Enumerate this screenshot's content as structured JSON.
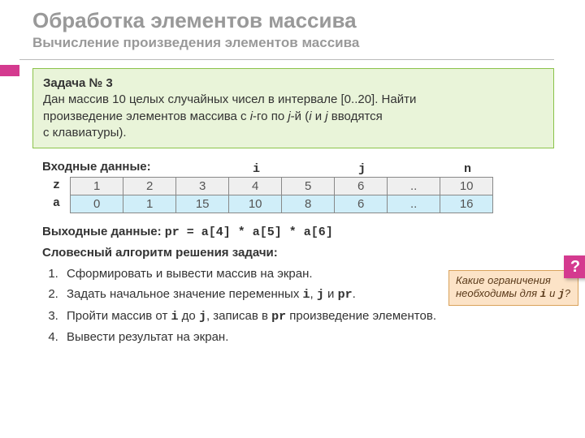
{
  "header": {
    "title": "Обработка элементов массива",
    "subtitle": "Вычисление произведения элементов массива"
  },
  "task": {
    "label": "Задача № 3",
    "text_l1": "Дан массив 10 целых случайных чисел в интервале [0..20]. Найти",
    "text_l2_a": "произведение элементов массива с ",
    "text_l2_b": "-го по ",
    "text_l2_c": "-й (",
    "text_l2_d": " и ",
    "text_l2_e": " вводятся",
    "text_l3": "с клавиатуры)."
  },
  "input_label": "Входные данные:",
  "col_labels": {
    "i": "i",
    "j": "j",
    "n": "n"
  },
  "row_labels": {
    "z": "z",
    "a": "a"
  },
  "table": {
    "z": [
      "1",
      "2",
      "3",
      "4",
      "5",
      "6",
      "..",
      "10"
    ],
    "a": [
      "0",
      "1",
      "15",
      "10",
      "8",
      "6",
      "..",
      "16"
    ]
  },
  "output": {
    "label": "Выходные данные: ",
    "expr": "pr = a[4] * a[5] * a[6]"
  },
  "algo_label": "Словесный алгоритм решения задачи:",
  "steps": {
    "s1": "Сформировать и вывести массив на экран.",
    "s2_a": "Задать начальное значение переменных ",
    "s2_b": ", ",
    "s2_c": " и ",
    "s2_d": ".",
    "s3_a": "Пройти массив от ",
    "s3_b": " до ",
    "s3_c": ", записав в ",
    "s3_d": " произведение элементов.",
    "s4": "Вывести результат на экран."
  },
  "vars": {
    "i": "i",
    "j": "j",
    "pr": "pr"
  },
  "hint": {
    "l1": "Какие ограничения",
    "l2_a": "необходимы для ",
    "l2_b": " и ",
    "l2_c": "?"
  },
  "q_mark": "?",
  "colors": {
    "accent": "#d43a8f",
    "task_bg": "#e9f4d9",
    "task_border": "#8bc34a",
    "row_z_bg": "#efefef",
    "row_a_bg": "#d0eef9",
    "hint_bg": "#fce3c7",
    "hint_border": "#d9a25b"
  }
}
